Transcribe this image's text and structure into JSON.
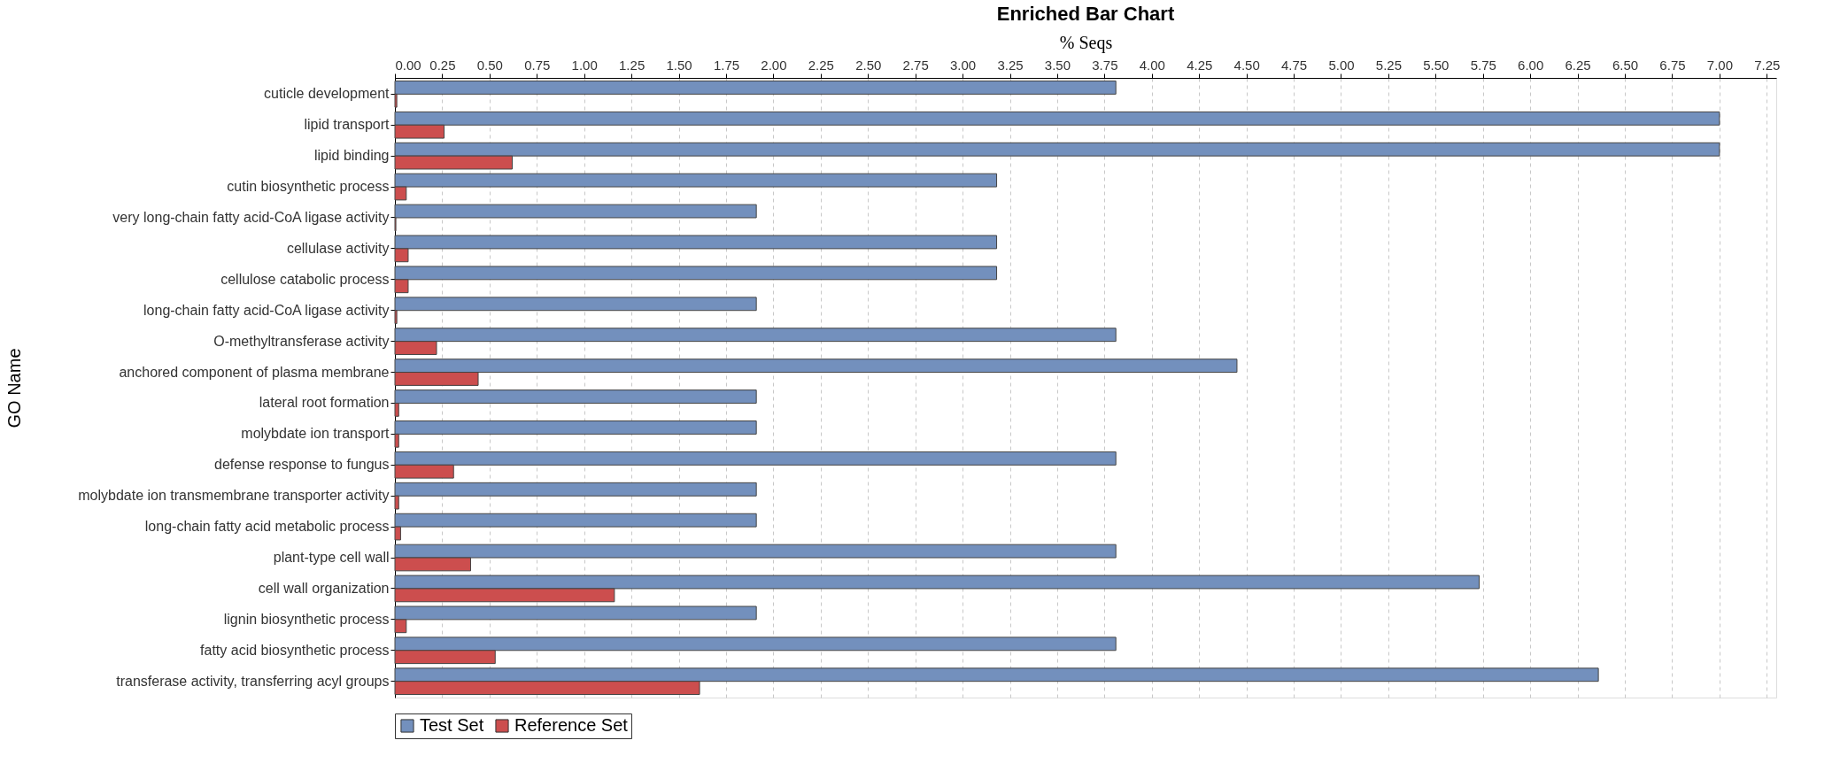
{
  "chart_data": {
    "type": "bar",
    "orientation": "horizontal",
    "title": "Enriched Bar Chart",
    "xlabel": "% Seqs",
    "ylabel": "GO Name",
    "categories": [
      "cuticle development",
      "lipid transport",
      "lipid binding",
      "cutin biosynthetic process",
      "very long-chain fatty acid-CoA ligase activity",
      "cellulase activity",
      "cellulose catabolic process",
      "long-chain fatty acid-CoA ligase activity",
      "O-methyltransferase activity",
      "anchored component of plasma membrane",
      "lateral root formation",
      "molybdate ion transport",
      "defense response to fungus",
      "molybdate ion transmembrane transporter activity",
      "long-chain fatty acid metabolic process",
      "plant-type cell wall",
      "cell wall organization",
      "lignin biosynthetic process",
      "fatty acid biosynthetic process",
      "transferase activity, transferring acyl groups"
    ],
    "series": [
      {
        "name": "Test Set",
        "color": "#7390bd",
        "values": [
          3.81,
          7.0,
          7.0,
          3.18,
          1.91,
          3.18,
          3.18,
          1.91,
          3.81,
          4.45,
          1.91,
          1.91,
          3.81,
          1.91,
          1.91,
          3.81,
          5.73,
          1.91,
          3.81,
          6.36
        ]
      },
      {
        "name": "Reference Set",
        "color": "#cc4e4e",
        "values": [
          0.01,
          0.26,
          0.62,
          0.06,
          0.005,
          0.07,
          0.07,
          0.01,
          0.22,
          0.44,
          0.02,
          0.02,
          0.31,
          0.02,
          0.03,
          0.4,
          1.16,
          0.06,
          0.53,
          1.61
        ]
      }
    ],
    "xlim": [
      0,
      7.3
    ],
    "xticks": [
      {
        "value": 0,
        "label": "0.00"
      },
      {
        "value": 0.25,
        "label": "0.25"
      },
      {
        "value": 0.5,
        "label": "0.50"
      },
      {
        "value": 0.75,
        "label": "0.75"
      },
      {
        "value": 1,
        "label": "1.00"
      },
      {
        "value": 1.25,
        "label": "1.25"
      },
      {
        "value": 1.5,
        "label": "1.50"
      },
      {
        "value": 1.75,
        "label": "1.75"
      },
      {
        "value": 2,
        "label": "2.00"
      },
      {
        "value": 2.25,
        "label": "2.25"
      },
      {
        "value": 2.5,
        "label": "2.50"
      },
      {
        "value": 2.75,
        "label": "2.75"
      },
      {
        "value": 3,
        "label": "3.00"
      },
      {
        "value": 3.25,
        "label": "3.25"
      },
      {
        "value": 3.5,
        "label": "3.50"
      },
      {
        "value": 3.75,
        "label": "3.75"
      },
      {
        "value": 4,
        "label": "4.00"
      },
      {
        "value": 4.25,
        "label": "4.25"
      },
      {
        "value": 4.5,
        "label": "4.50"
      },
      {
        "value": 4.75,
        "label": "4.75"
      },
      {
        "value": 5,
        "label": "5.00"
      },
      {
        "value": 5.25,
        "label": "5.25"
      },
      {
        "value": 5.5,
        "label": "5.50"
      },
      {
        "value": 5.75,
        "label": "5.75"
      },
      {
        "value": 6,
        "label": "6.00"
      },
      {
        "value": 6.25,
        "label": "6.25"
      },
      {
        "value": 6.5,
        "label": "6.50"
      },
      {
        "value": 6.75,
        "label": "6.75"
      },
      {
        "value": 7,
        "label": "7.00"
      },
      {
        "value": 7.25,
        "label": "7.25"
      }
    ],
    "grid": "x",
    "legend": "bottom"
  }
}
